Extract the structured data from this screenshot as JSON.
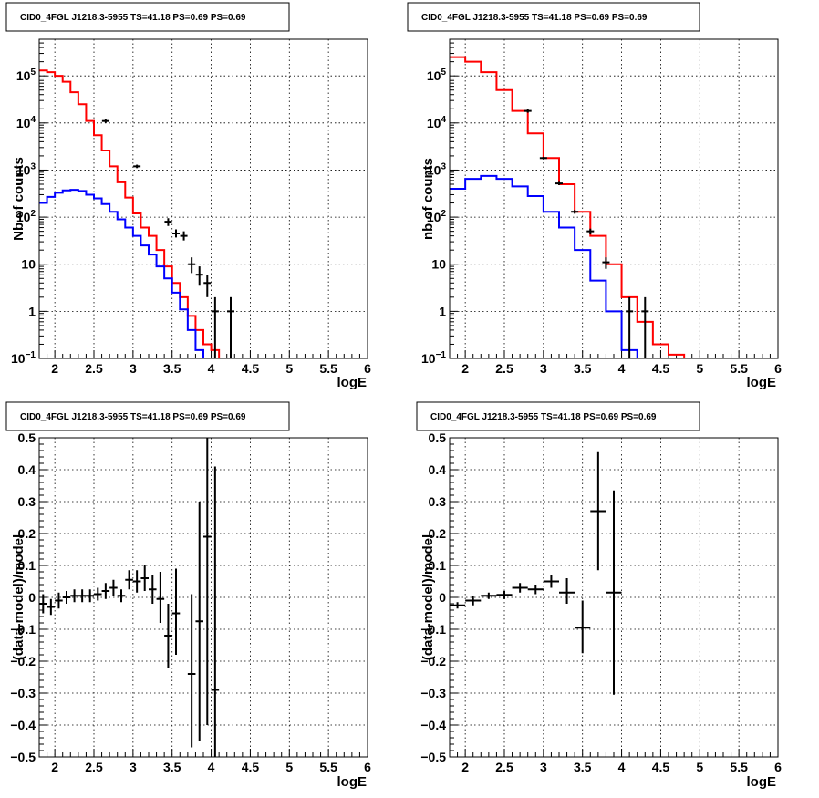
{
  "chart_data": [
    {
      "type": "line",
      "title": "CID0_4FGL J1218.3-5955 TS=41.18 PS=0.69 PS=0.69",
      "xlabel": "logE",
      "ylabel": "Nb of counts",
      "xlim": [
        1.8,
        6.0
      ],
      "ylim": [
        0.1,
        600000
      ],
      "yscale": "log",
      "x_ticks": [
        "2",
        "2.5",
        "3",
        "3.5",
        "4",
        "4.5",
        "5",
        "5.5",
        "6"
      ],
      "y_ticks": [
        "10^-1",
        "1",
        "10",
        "10^2",
        "10^3",
        "10^4",
        "10^5"
      ],
      "grid": true,
      "series": [
        {
          "name": "",
          "color": "#ff0000",
          "kind": "step",
          "bin_width": 0.1,
          "x": [
            1.8,
            1.9,
            2.0,
            2.1,
            2.2,
            2.3,
            2.4,
            2.5,
            2.6,
            2.7,
            2.8,
            2.9,
            3.0,
            3.1,
            3.2,
            3.3,
            3.4,
            3.5,
            3.6,
            3.7,
            3.8,
            3.9,
            4.0,
            4.1,
            4.2,
            4.3,
            4.4,
            4.5,
            4.6,
            4.7,
            4.8,
            4.9,
            5.0,
            5.1,
            5.2,
            5.3,
            5.4,
            5.5,
            5.6,
            5.7,
            5.8,
            5.9
          ],
          "values": [
            130000,
            120000,
            100000,
            75000,
            45000,
            25000,
            11000,
            5500,
            2600,
            1200,
            550,
            260,
            120,
            60,
            40,
            20,
            9,
            4,
            2,
            0.8,
            0.4,
            0.2,
            0.15,
            0.1,
            0.1,
            0.1,
            0.1,
            0.1,
            0.1,
            0.1,
            0.1,
            0.1,
            0.1,
            0.1,
            0.1,
            0.1,
            0.1,
            0.1,
            0.1,
            0.1,
            0.1,
            0.1
          ]
        },
        {
          "name": "",
          "color": "#0000ff",
          "kind": "step",
          "bin_width": 0.1,
          "x": [
            1.8,
            1.9,
            2.0,
            2.1,
            2.2,
            2.3,
            2.4,
            2.5,
            2.6,
            2.7,
            2.8,
            2.9,
            3.0,
            3.1,
            3.2,
            3.3,
            3.4,
            3.5,
            3.6,
            3.7,
            3.8,
            3.9,
            4.0,
            4.1,
            4.2,
            4.3,
            4.4,
            4.5,
            4.6,
            4.7,
            4.8,
            4.9,
            5.0,
            5.1,
            5.2,
            5.3,
            5.4,
            5.5,
            5.6,
            5.7,
            5.8,
            5.9
          ],
          "values": [
            200,
            270,
            330,
            370,
            380,
            360,
            300,
            250,
            190,
            130,
            90,
            60,
            40,
            25,
            16,
            9,
            5,
            2.5,
            1.1,
            0.4,
            0.15,
            0.1,
            0.1,
            0.1,
            0.1,
            0.1,
            0.1,
            0.1,
            0.1,
            0.1,
            0.1,
            0.1,
            0.1,
            0.1,
            0.1,
            0.1,
            0.1,
            0.1,
            0.1,
            0.1,
            0.1,
            0.1
          ]
        },
        {
          "name": "",
          "color": "#000000",
          "kind": "points",
          "points": [
            {
              "x": 2.65,
              "y": 11000,
              "lo": 10000,
              "hi": 12000
            },
            {
              "x": 3.05,
              "y": 1200,
              "lo": 1100,
              "hi": 1300
            },
            {
              "x": 3.45,
              "y": 80,
              "lo": 65,
              "hi": 95
            },
            {
              "x": 3.55,
              "y": 45,
              "lo": 37,
              "hi": 55
            },
            {
              "x": 3.65,
              "y": 40,
              "lo": 32,
              "hi": 50
            },
            {
              "x": 3.75,
              "y": 10,
              "lo": 6.5,
              "hi": 14
            },
            {
              "x": 3.85,
              "y": 6,
              "lo": 3.5,
              "hi": 9
            },
            {
              "x": 3.95,
              "y": 4,
              "lo": 2,
              "hi": 6
            },
            {
              "x": 4.05,
              "y": 1,
              "lo": 0.1,
              "hi": 2
            },
            {
              "x": 4.25,
              "y": 1,
              "lo": 0.1,
              "hi": 2
            }
          ]
        }
      ]
    },
    {
      "type": "line",
      "title": "CID0_4FGL J1218.3-5955 TS=41.18 PS=0.69 PS=0.69",
      "xlabel": "logE",
      "ylabel": "nb of counts",
      "xlim": [
        1.8,
        6.0
      ],
      "ylim": [
        0.1,
        600000
      ],
      "yscale": "log",
      "x_ticks": [
        "2",
        "2.5",
        "3",
        "3.5",
        "4",
        "4.5",
        "5",
        "5.5",
        "6"
      ],
      "y_ticks": [
        "10^-1",
        "1",
        "10",
        "10^2",
        "10^3",
        "10^4",
        "10^5"
      ],
      "grid": true,
      "series": [
        {
          "name": "",
          "color": "#ff0000",
          "kind": "step",
          "bin_width": 0.2,
          "x": [
            1.8,
            2.0,
            2.2,
            2.4,
            2.6,
            2.8,
            3.0,
            3.2,
            3.4,
            3.6,
            3.8,
            4.0,
            4.2,
            4.4,
            4.6,
            4.8,
            5.0,
            5.2,
            5.4,
            5.6,
            5.8
          ],
          "values": [
            250000,
            200000,
            120000,
            50000,
            18000,
            6000,
            1800,
            500,
            130,
            40,
            10,
            2,
            0.6,
            0.2,
            0.12,
            0.1,
            0.1,
            0.1,
            0.1,
            0.1,
            0.1
          ]
        },
        {
          "name": "",
          "color": "#0000ff",
          "kind": "step",
          "bin_width": 0.2,
          "x": [
            1.8,
            2.0,
            2.2,
            2.4,
            2.6,
            2.8,
            3.0,
            3.2,
            3.4,
            3.6,
            3.8,
            4.0,
            4.2,
            4.4,
            4.6,
            4.8,
            5.0,
            5.2,
            5.4,
            5.6,
            5.8
          ],
          "values": [
            400,
            650,
            750,
            650,
            450,
            280,
            130,
            60,
            20,
            4.5,
            1,
            0.15,
            0.1,
            0.1,
            0.1,
            0.1,
            0.1,
            0.1,
            0.1,
            0.1,
            0.1
          ]
        },
        {
          "name": "",
          "color": "#000000",
          "kind": "points",
          "points": [
            {
              "x": 2.8,
              "y": 18000,
              "lo": 16500,
              "hi": 19500
            },
            {
              "x": 3.0,
              "y": 1800,
              "lo": 1700,
              "hi": 1900
            },
            {
              "x": 3.2,
              "y": 520,
              "lo": 480,
              "hi": 560
            },
            {
              "x": 3.4,
              "y": 130,
              "lo": 118,
              "hi": 142
            },
            {
              "x": 3.6,
              "y": 50,
              "lo": 43,
              "hi": 57
            },
            {
              "x": 3.8,
              "y": 11,
              "lo": 8,
              "hi": 14
            },
            {
              "x": 4.1,
              "y": 1,
              "lo": 0.1,
              "hi": 2
            },
            {
              "x": 4.3,
              "y": 1,
              "lo": 0.1,
              "hi": 2
            }
          ]
        }
      ]
    },
    {
      "type": "scatter",
      "title": "CID0_4FGL J1218.3-5955 TS=41.18 PS=0.69 PS=0.69",
      "xlabel": "logE",
      "ylabel": "(data-model)/model",
      "xlim": [
        1.8,
        6.0
      ],
      "ylim": [
        -0.5,
        0.5
      ],
      "x_ticks": [
        "2",
        "2.5",
        "3",
        "3.5",
        "4",
        "4.5",
        "5",
        "5.5",
        "6"
      ],
      "y_ticks": [
        "-0.5",
        "-0.4",
        "-0.3",
        "-0.2",
        "-0.1",
        "0",
        "0.1",
        "0.2",
        "0.3",
        "0.4",
        "0.5"
      ],
      "grid": true,
      "series": [
        {
          "name": "",
          "color": "#000000",
          "kind": "points",
          "x_half_width": 0.05,
          "points": [
            {
              "x": 1.85,
              "y": -0.02,
              "lo": -0.05,
              "hi": 0.01
            },
            {
              "x": 1.95,
              "y": -0.03,
              "lo": -0.055,
              "hi": -0.005
            },
            {
              "x": 2.05,
              "y": -0.01,
              "lo": -0.035,
              "hi": 0.015
            },
            {
              "x": 2.15,
              "y": 0.0,
              "lo": -0.02,
              "hi": 0.02
            },
            {
              "x": 2.25,
              "y": 0.005,
              "lo": -0.015,
              "hi": 0.025
            },
            {
              "x": 2.35,
              "y": 0.005,
              "lo": -0.015,
              "hi": 0.025
            },
            {
              "x": 2.45,
              "y": 0.005,
              "lo": -0.015,
              "hi": 0.025
            },
            {
              "x": 2.55,
              "y": 0.01,
              "lo": -0.01,
              "hi": 0.03
            },
            {
              "x": 2.65,
              "y": 0.02,
              "lo": -0.005,
              "hi": 0.045
            },
            {
              "x": 2.75,
              "y": 0.03,
              "lo": 0.005,
              "hi": 0.055
            },
            {
              "x": 2.85,
              "y": 0.005,
              "lo": -0.015,
              "hi": 0.025
            },
            {
              "x": 2.95,
              "y": 0.055,
              "lo": 0.025,
              "hi": 0.085
            },
            {
              "x": 3.05,
              "y": 0.05,
              "lo": 0.015,
              "hi": 0.085
            },
            {
              "x": 3.15,
              "y": 0.06,
              "lo": 0.02,
              "hi": 0.1
            },
            {
              "x": 3.25,
              "y": 0.025,
              "lo": -0.02,
              "hi": 0.07
            },
            {
              "x": 3.35,
              "y": -0.005,
              "lo": -0.08,
              "hi": 0.08
            },
            {
              "x": 3.45,
              "y": -0.12,
              "lo": -0.22,
              "hi": -0.02
            },
            {
              "x": 3.55,
              "y": -0.05,
              "lo": -0.18,
              "hi": 0.09
            },
            {
              "x": 3.75,
              "y": -0.24,
              "lo": -0.47,
              "hi": 0.01
            },
            {
              "x": 3.85,
              "y": -0.075,
              "lo": -0.45,
              "hi": 0.3
            },
            {
              "x": 3.95,
              "y": 0.19,
              "lo": -0.4,
              "hi": 0.5
            },
            {
              "x": 4.05,
              "y": -0.29,
              "lo": -0.5,
              "hi": 0.41
            }
          ]
        }
      ]
    },
    {
      "type": "scatter",
      "title": "CID0_4FGL J1218.3-5955 TS=41.18 PS=0.69 PS=0.69",
      "xlabel": "logE",
      "ylabel": "(data-model)/model",
      "xlim": [
        1.8,
        6.0
      ],
      "ylim": [
        -0.5,
        0.5
      ],
      "x_ticks": [
        "2",
        "2.5",
        "3",
        "3.5",
        "4",
        "4.5",
        "5",
        "5.5",
        "6"
      ],
      "y_ticks": [
        "-0.5",
        "-0.4",
        "-0.3",
        "-0.2",
        "-0.1",
        "0",
        "0.1",
        "0.2",
        "0.3",
        "0.4",
        "0.5"
      ],
      "grid": true,
      "series": [
        {
          "name": "",
          "color": "#000000",
          "kind": "points",
          "x_half_width": 0.1,
          "points": [
            {
              "x": 1.9,
              "y": -0.025,
              "lo": -0.035,
              "hi": -0.015
            },
            {
              "x": 2.1,
              "y": -0.01,
              "lo": -0.025,
              "hi": 0.005
            },
            {
              "x": 2.3,
              "y": 0.005,
              "lo": -0.005,
              "hi": 0.015
            },
            {
              "x": 2.5,
              "y": 0.008,
              "lo": -0.005,
              "hi": 0.02
            },
            {
              "x": 2.7,
              "y": 0.03,
              "lo": 0.015,
              "hi": 0.045
            },
            {
              "x": 2.9,
              "y": 0.025,
              "lo": 0.01,
              "hi": 0.04
            },
            {
              "x": 3.1,
              "y": 0.05,
              "lo": 0.03,
              "hi": 0.07
            },
            {
              "x": 3.3,
              "y": 0.015,
              "lo": -0.02,
              "hi": 0.06
            },
            {
              "x": 3.5,
              "y": -0.095,
              "lo": -0.175,
              "hi": -0.01
            },
            {
              "x": 3.7,
              "y": 0.27,
              "lo": 0.085,
              "hi": 0.455
            },
            {
              "x": 3.9,
              "y": 0.015,
              "lo": -0.305,
              "hi": 0.335
            }
          ]
        }
      ]
    }
  ]
}
